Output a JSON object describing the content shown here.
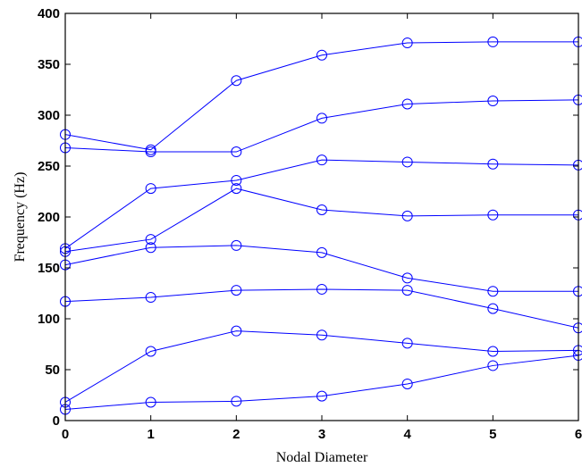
{
  "chart_data": {
    "type": "line",
    "xlabel": "Nodal Diameter",
    "ylabel": "Frequency (Hz)",
    "xlim": [
      0,
      6
    ],
    "ylim": [
      0,
      400
    ],
    "xticks": [
      0,
      1,
      2,
      3,
      4,
      5,
      6
    ],
    "yticks": [
      0,
      50,
      100,
      150,
      200,
      250,
      300,
      350,
      400
    ],
    "x": [
      0,
      1,
      2,
      3,
      4,
      5,
      6
    ],
    "grid": false,
    "marker": "circle",
    "line_color": "#0000ff",
    "series": [
      {
        "values": [
          11,
          18,
          19,
          24,
          36,
          54,
          64
        ]
      },
      {
        "values": [
          18,
          68,
          88,
          84,
          76,
          68,
          69
        ]
      },
      {
        "values": [
          117,
          121,
          128,
          129,
          128,
          110,
          91
        ]
      },
      {
        "values": [
          153,
          170,
          172,
          165,
          140,
          127,
          127
        ]
      },
      {
        "values": [
          166,
          178,
          228,
          207,
          201,
          202,
          202
        ]
      },
      {
        "values": [
          169,
          228,
          236,
          256,
          254,
          252,
          251
        ]
      },
      {
        "values": [
          268,
          264,
          264,
          297,
          311,
          314,
          315
        ]
      },
      {
        "values": [
          281,
          266,
          334,
          359,
          371,
          372,
          372
        ]
      }
    ]
  }
}
